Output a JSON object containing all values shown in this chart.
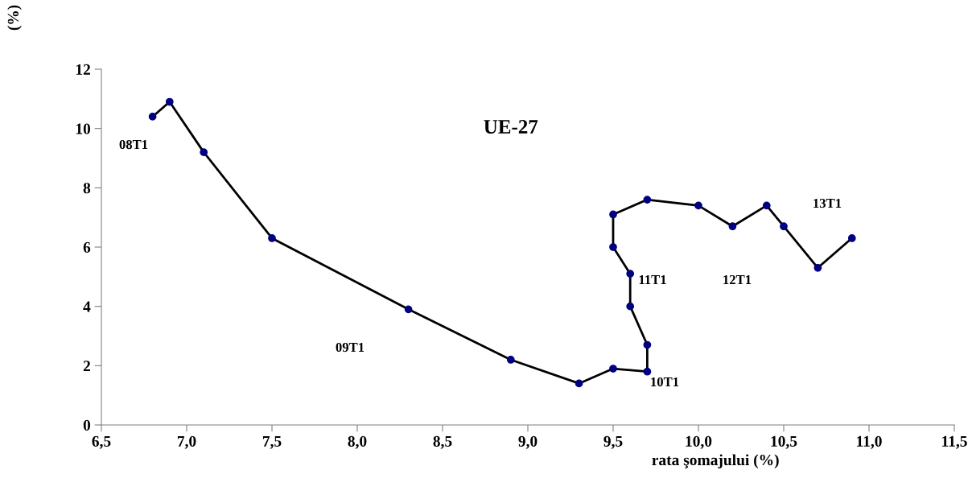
{
  "chart_data": {
    "type": "line",
    "title": "UE-27",
    "xlabel": "rata şomajului (%)",
    "ylabel": "(%)",
    "x": [
      6.8,
      6.9,
      7.1,
      7.5,
      8.3,
      8.9,
      9.3,
      9.5,
      9.7,
      9.7,
      9.6,
      9.6,
      9.5,
      9.5,
      9.7,
      10.0,
      10.2,
      10.4,
      10.5,
      10.7,
      10.9
    ],
    "series": [
      {
        "color": "#000000",
        "values": [
          10.4,
          10.9,
          9.2,
          6.3,
          3.9,
          2.2,
          1.4,
          1.9,
          1.8,
          2.7,
          4.0,
          5.1,
          6.0,
          7.1,
          7.6,
          7.4,
          6.7,
          7.4,
          6.7,
          5.3,
          6.3
        ]
      }
    ],
    "marker": "circle",
    "line_style": "solid",
    "grid": false,
    "legend": false,
    "xlim": [
      6.5,
      11.5
    ],
    "xticks": [
      {
        "value": 6.5,
        "label": "6,5"
      },
      {
        "value": 7.0,
        "label": "7,0"
      },
      {
        "value": 7.5,
        "label": "7,5"
      },
      {
        "value": 8.0,
        "label": "8,0"
      },
      {
        "value": 8.5,
        "label": "8,5"
      },
      {
        "value": 9.0,
        "label": "9,0"
      },
      {
        "value": 9.5,
        "label": "9,5"
      },
      {
        "value": 10.0,
        "label": "10,0"
      },
      {
        "value": 10.5,
        "label": "10,5"
      },
      {
        "value": 11.0,
        "label": "11,0"
      },
      {
        "value": 11.5,
        "label": "11,5"
      }
    ],
    "ylim": [
      0,
      12
    ],
    "yticks": [
      0,
      2,
      4,
      6,
      8,
      10,
      12
    ],
    "annotations": [
      "08T1",
      "09T1",
      "10T1",
      "11T1",
      "12T1",
      "13T1"
    ]
  }
}
